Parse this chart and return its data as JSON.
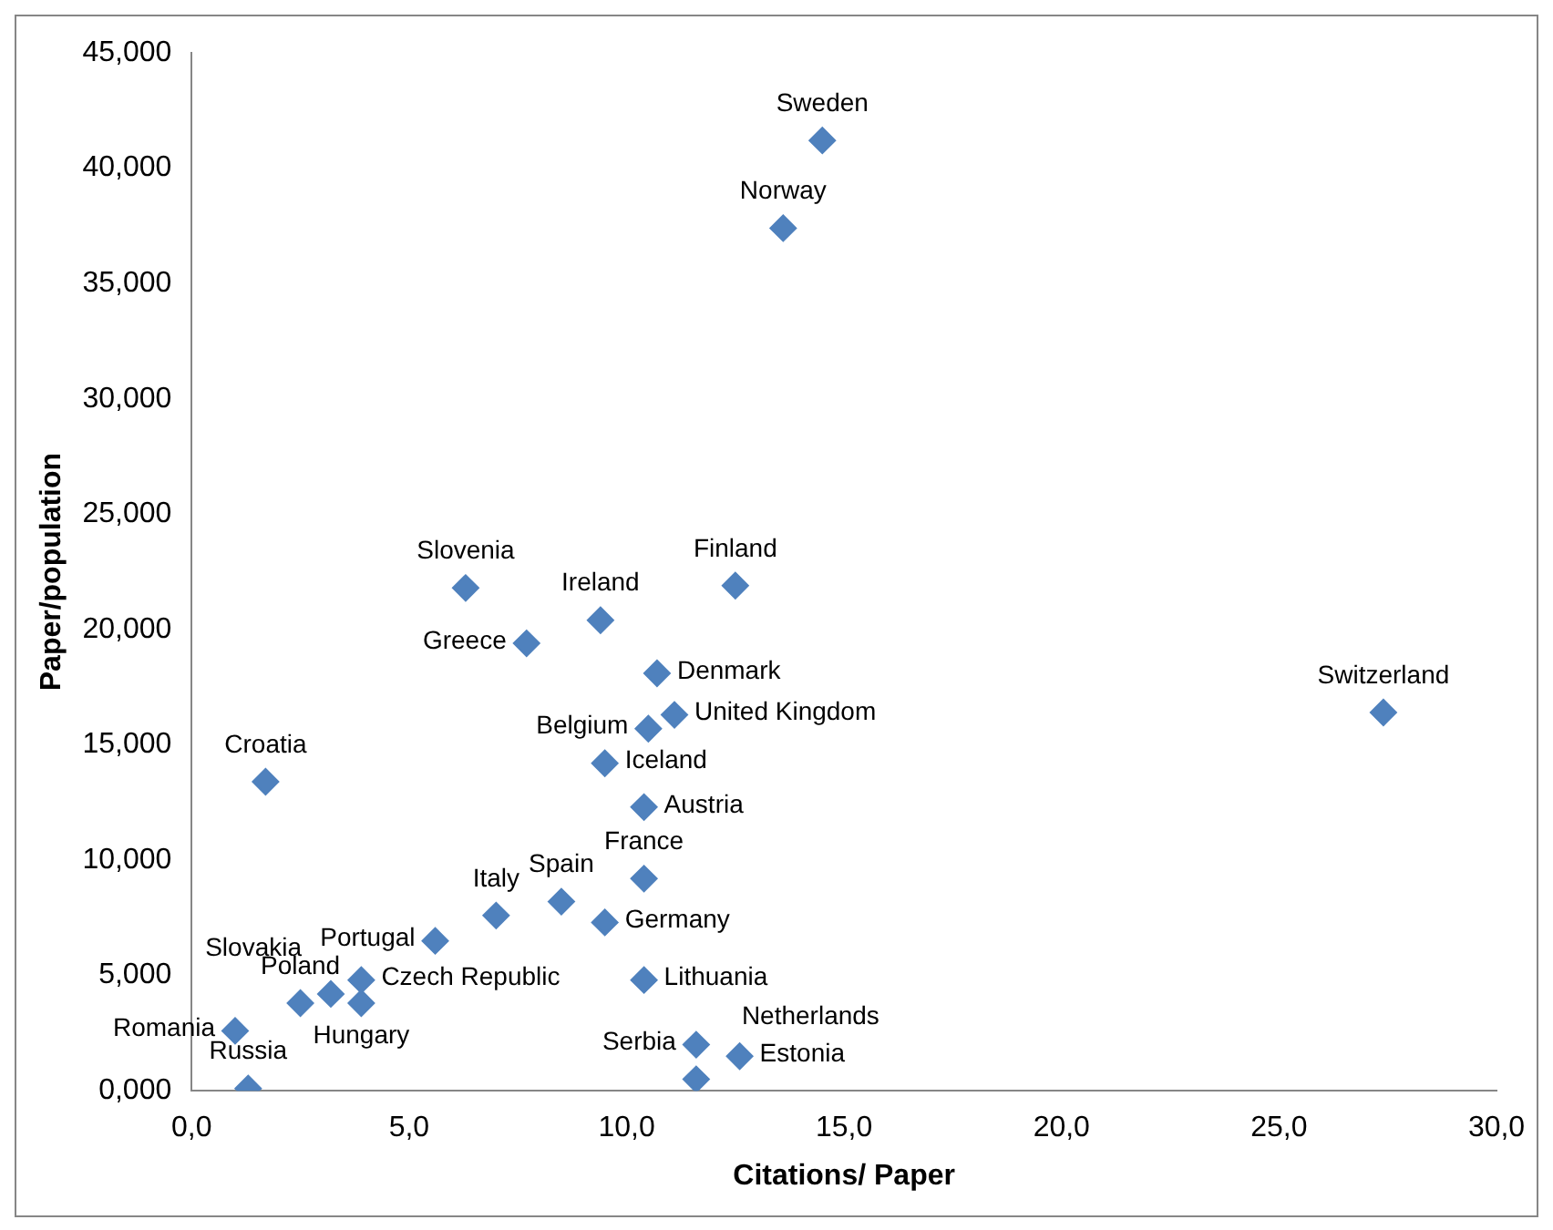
{
  "chart_data": {
    "type": "scatter",
    "xlabel": "Citations/ Paper",
    "ylabel": "Paper/population",
    "xlim": [
      0,
      30
    ],
    "ylim": [
      0,
      45
    ],
    "xticks": [
      {
        "value": 0,
        "label": "0,0"
      },
      {
        "value": 5,
        "label": "5,0"
      },
      {
        "value": 10,
        "label": "10,0"
      },
      {
        "value": 15,
        "label": "15,0"
      },
      {
        "value": 20,
        "label": "20,0"
      },
      {
        "value": 25,
        "label": "25,0"
      },
      {
        "value": 30,
        "label": "30,0"
      }
    ],
    "yticks": [
      {
        "value": 0,
        "label": "0,000"
      },
      {
        "value": 5,
        "label": "5,000"
      },
      {
        "value": 10,
        "label": "10,000"
      },
      {
        "value": 15,
        "label": "15,000"
      },
      {
        "value": 20,
        "label": "20,000"
      },
      {
        "value": 25,
        "label": "25,000"
      },
      {
        "value": 30,
        "label": "30,000"
      },
      {
        "value": 35,
        "label": "35,000"
      },
      {
        "value": 40,
        "label": "40,000"
      },
      {
        "value": 45,
        "label": "45,000"
      }
    ],
    "grid": false,
    "legend": false,
    "marker": "diamond",
    "series": [
      {
        "color": "#4f81bd",
        "x": [
          14.5,
          13.6,
          27.4,
          12.5,
          6.3,
          9.4,
          7.7,
          10.7,
          11.1,
          10.5,
          9.5,
          10.4,
          1.7,
          10.4,
          8.5,
          7.0,
          9.5,
          5.6,
          3.9,
          3.9,
          3.2,
          2.5,
          1.0,
          1.3,
          10.4,
          12.6,
          11.6,
          11.6
        ],
        "values": [
          41.2,
          37.4,
          16.4,
          21.9,
          21.8,
          20.4,
          19.4,
          18.1,
          16.3,
          15.7,
          14.2,
          12.3,
          13.4,
          9.2,
          8.2,
          7.6,
          7.3,
          6.5,
          4.8,
          3.8,
          4.2,
          3.8,
          2.6,
          0.1,
          4.8,
          1.5,
          2.0,
          0.5
        ]
      }
    ],
    "annotations": [
      {
        "text": "Sweden",
        "x": 14.5,
        "y": 41.2
      },
      {
        "text": "Norway",
        "x": 13.6,
        "y": 37.4
      },
      {
        "text": "Switzerland",
        "x": 27.4,
        "y": 16.4
      },
      {
        "text": "Finland",
        "x": 12.5,
        "y": 21.9
      },
      {
        "text": "Slovenia",
        "x": 6.3,
        "y": 21.8
      },
      {
        "text": "Ireland",
        "x": 9.4,
        "y": 20.4
      },
      {
        "text": "Greece",
        "x": 7.7,
        "y": 19.4
      },
      {
        "text": "Denmark",
        "x": 10.7,
        "y": 18.1
      },
      {
        "text": "United Kingdom",
        "x": 11.1,
        "y": 16.3
      },
      {
        "text": "Belgium",
        "x": 10.5,
        "y": 15.7
      },
      {
        "text": "Iceland",
        "x": 9.5,
        "y": 14.2
      },
      {
        "text": "Austria",
        "x": 10.4,
        "y": 12.3
      },
      {
        "text": "Croatia",
        "x": 1.7,
        "y": 13.4
      },
      {
        "text": "France",
        "x": 10.4,
        "y": 9.2
      },
      {
        "text": "Spain",
        "x": 8.5,
        "y": 8.2
      },
      {
        "text": "Italy",
        "x": 7.0,
        "y": 7.6
      },
      {
        "text": "Germany",
        "x": 9.5,
        "y": 7.3
      },
      {
        "text": "Portugal",
        "x": 5.6,
        "y": 6.5
      },
      {
        "text": "Czech Republic",
        "x": 3.9,
        "y": 4.8
      },
      {
        "text": "Hungary",
        "x": 3.9,
        "y": 3.8
      },
      {
        "text": "Slovakia",
        "x": 3.2,
        "y": 4.2
      },
      {
        "text": "Poland",
        "x": 2.5,
        "y": 3.8
      },
      {
        "text": "Romania",
        "x": 1.0,
        "y": 2.6
      },
      {
        "text": "Russia",
        "x": 1.3,
        "y": 0.1
      },
      {
        "text": "Lithuania",
        "x": 10.4,
        "y": 4.8
      },
      {
        "text": "Estonia",
        "x": 12.6,
        "y": 1.5
      },
      {
        "text": "Serbia",
        "x": 11.6,
        "y": 2.0
      },
      {
        "text": "Netherlands",
        "x": 11.6,
        "y": 0.5
      }
    ]
  }
}
